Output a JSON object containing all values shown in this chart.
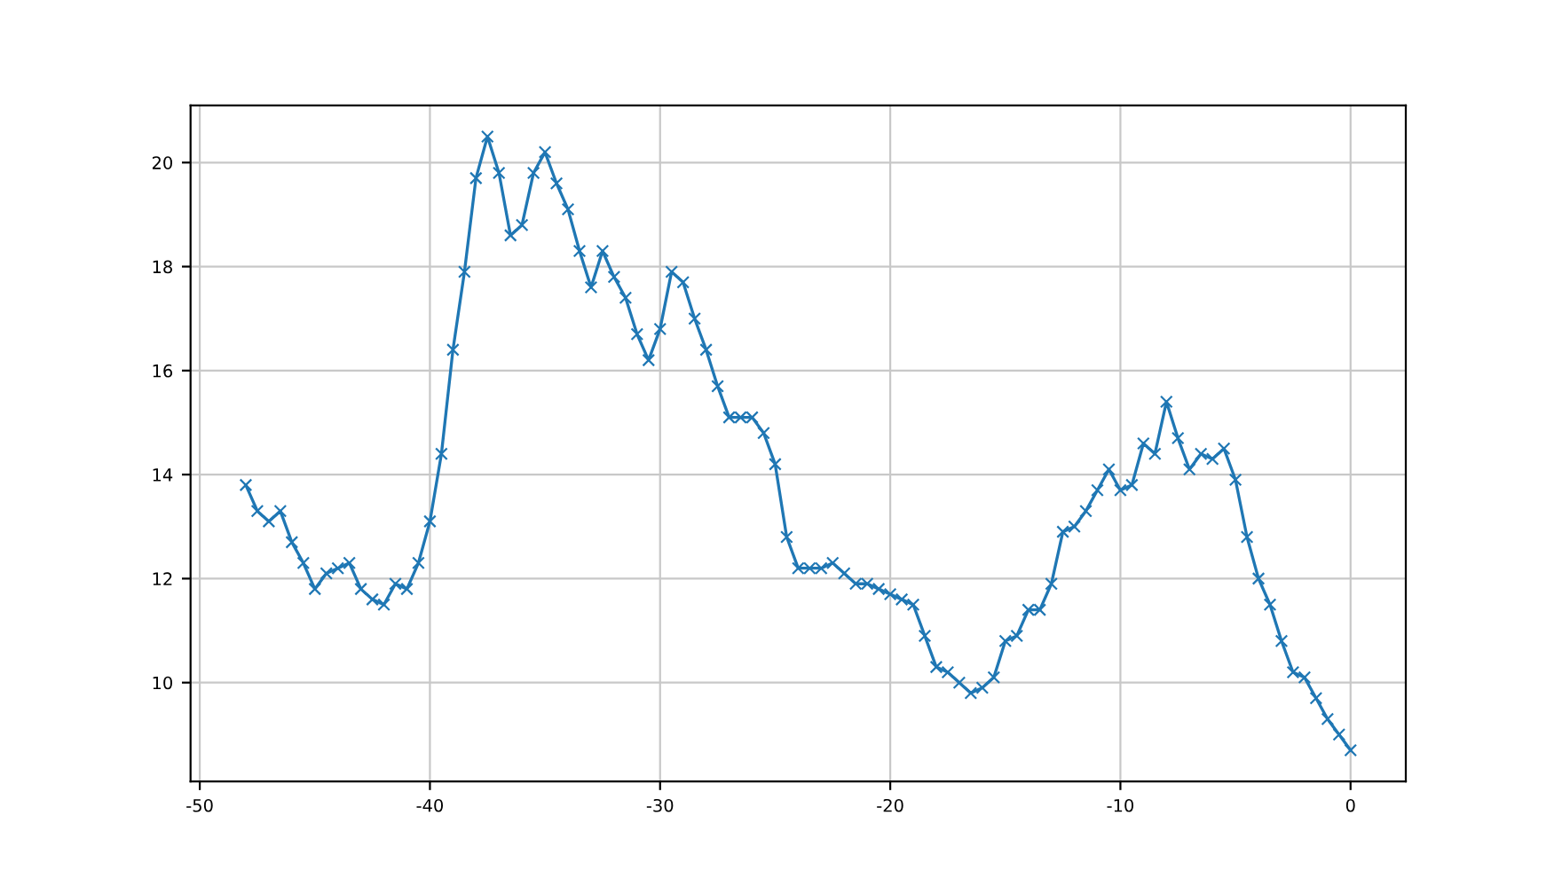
{
  "chart_data": {
    "type": "line",
    "x": [
      -48,
      -47.5,
      -47,
      -46.5,
      -46,
      -45.5,
      -45,
      -44.5,
      -44,
      -43.5,
      -43,
      -42.5,
      -42,
      -41.5,
      -41,
      -40.5,
      -40,
      -39.5,
      -39,
      -38.5,
      -38,
      -37.5,
      -37,
      -36.5,
      -36,
      -35.5,
      -35,
      -34.5,
      -34,
      -33.5,
      -33,
      -32.5,
      -32,
      -31.5,
      -31,
      -30.5,
      -30,
      -29.5,
      -29,
      -28.5,
      -28,
      -27.5,
      -27,
      -26.5,
      -26,
      -25.5,
      -25,
      -24.5,
      -24,
      -23.5,
      -23,
      -22.5,
      -22,
      -21.5,
      -21,
      -20.5,
      -20,
      -19.5,
      -19,
      -18.5,
      -18,
      -17.5,
      -17,
      -16.5,
      -16,
      -15.5,
      -15,
      -14.5,
      -14,
      -13.5,
      -13,
      -12.5,
      -12,
      -11.5,
      -11,
      -10.5,
      -10,
      -9.5,
      -9,
      -8.5,
      -8,
      -7.5,
      -7,
      -6.5,
      -6,
      -5.5,
      -5,
      -4.5,
      -4,
      -3.5,
      -3,
      -2.5,
      -2,
      -1.5,
      -1,
      -0.5,
      0
    ],
    "series": [
      {
        "color": "#1f77b4",
        "values": [
          13.8,
          13.3,
          13.1,
          13.3,
          12.7,
          12.3,
          11.8,
          12.1,
          12.2,
          12.3,
          11.8,
          11.6,
          11.5,
          11.9,
          11.8,
          12.3,
          13.1,
          14.4,
          16.4,
          17.9,
          19.7,
          20.5,
          19.8,
          18.6,
          18.8,
          19.8,
          20.2,
          19.6,
          19.1,
          18.3,
          17.6,
          18.3,
          17.8,
          17.4,
          16.7,
          16.2,
          16.8,
          17.9,
          17.7,
          17.0,
          16.4,
          15.7,
          15.1,
          15.1,
          15.1,
          14.8,
          14.2,
          12.8,
          12.2,
          12.2,
          12.2,
          12.3,
          12.1,
          11.9,
          11.9,
          11.8,
          11.7,
          11.6,
          11.5,
          10.9,
          10.3,
          10.2,
          10.0,
          9.8,
          9.9,
          10.1,
          10.8,
          10.9,
          11.4,
          11.4,
          11.9,
          12.9,
          13.0,
          13.3,
          13.7,
          14.1,
          13.7,
          13.8,
          14.6,
          14.4,
          15.4,
          14.7,
          14.1,
          14.4,
          14.3,
          14.5,
          13.9,
          12.8,
          12.0,
          11.5,
          10.8,
          10.2,
          10.1,
          9.7,
          9.3,
          9.0,
          8.7
        ]
      }
    ],
    "xlim": [
      -50.4,
      2.4
    ],
    "ylim": [
      8.1,
      21.1
    ],
    "xticks": [
      -50,
      -40,
      -30,
      -20,
      -10,
      0
    ],
    "yticks": [
      10,
      12,
      14,
      16,
      18,
      20
    ],
    "grid": true,
    "marker": "cross",
    "line_style": "solid",
    "legend": false
  }
}
